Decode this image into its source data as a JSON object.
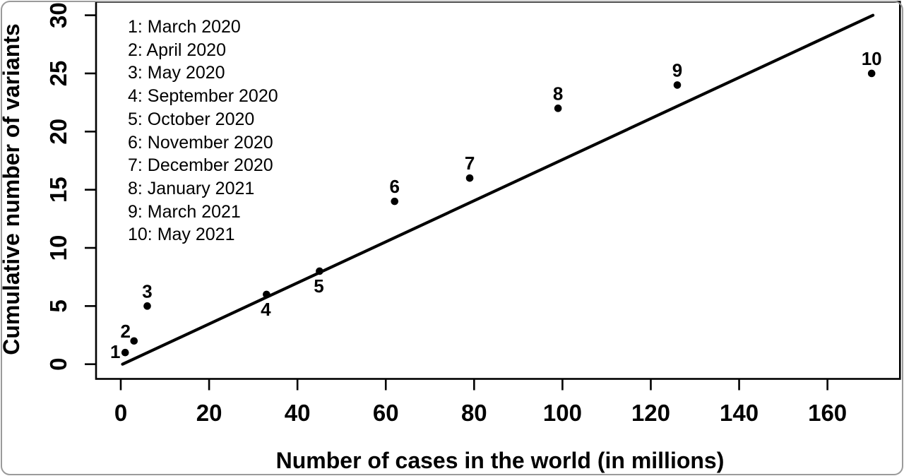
{
  "colors": {
    "foreground": "#000000",
    "background": "#ffffff",
    "frame_border": "#9a9a9a"
  },
  "chart_data": {
    "type": "scatter",
    "title": "",
    "xlabel": "Number of cases in the world (in millions)",
    "ylabel": "Cumulative number of variants",
    "xlim": [
      -6,
      177
    ],
    "ylim": [
      -1.2,
      31.2
    ],
    "xticks": [
      0,
      20,
      40,
      60,
      80,
      100,
      120,
      140,
      160
    ],
    "yticks": [
      0,
      5,
      10,
      15,
      20,
      25,
      30
    ],
    "grid": "off",
    "legend_position": "top-left-inside",
    "marker": "filled-circle",
    "points": [
      {
        "label": "1",
        "date": "March 2020",
        "x": 1,
        "y": 1,
        "label_pos": "left"
      },
      {
        "label": "2",
        "date": "April 2020",
        "x": 3,
        "y": 2,
        "label_pos": "above-left"
      },
      {
        "label": "3",
        "date": "May 2020",
        "x": 6,
        "y": 5,
        "label_pos": "above"
      },
      {
        "label": "4",
        "date": "September 2020",
        "x": 33,
        "y": 6,
        "label_pos": "below"
      },
      {
        "label": "5",
        "date": "October 2020",
        "x": 45,
        "y": 8,
        "label_pos": "below"
      },
      {
        "label": "6",
        "date": "November 2020",
        "x": 62,
        "y": 14,
        "label_pos": "above"
      },
      {
        "label": "7",
        "date": "December 2020",
        "x": 79,
        "y": 16,
        "label_pos": "above"
      },
      {
        "label": "8",
        "date": "January 2021",
        "x": 99,
        "y": 22,
        "label_pos": "above"
      },
      {
        "label": "9",
        "date": "March 2021",
        "x": 126,
        "y": 24,
        "label_pos": "above"
      },
      {
        "label": "10",
        "date": "May 2021",
        "x": 170,
        "y": 25,
        "label_pos": "above"
      }
    ],
    "trend_line": {
      "x1": 0.4,
      "y1": 0.0,
      "x2": 170.3,
      "y2": 30.0
    }
  }
}
